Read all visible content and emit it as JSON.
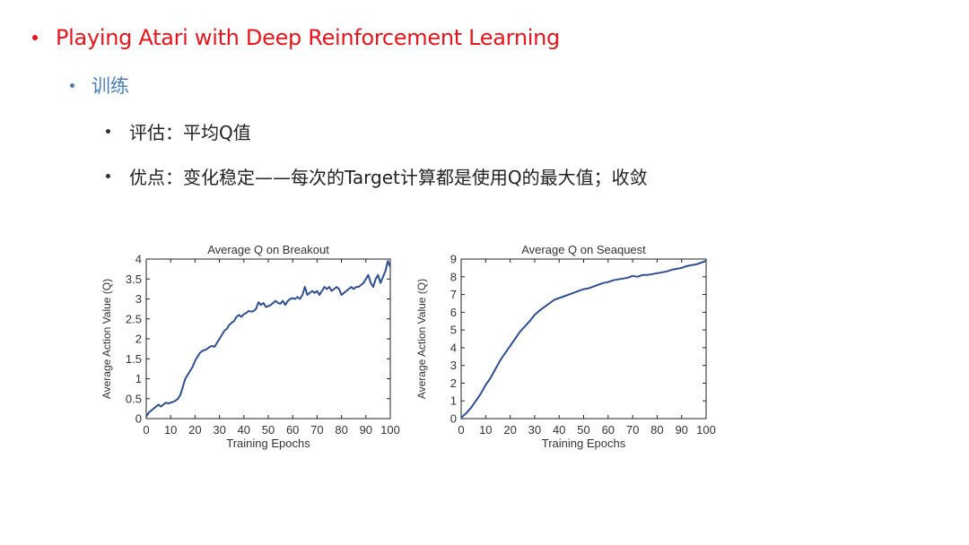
{
  "slide": {
    "title": "Playing Atari with Deep Reinforcement Learning",
    "subtopic": "训练",
    "points": [
      "评估：平均Q值",
      "优点：变化稳定——每次的Target计算都是使用Q的最大值；收敛"
    ],
    "colors": {
      "title": "#e8141b",
      "subtopic": "#4a7ebb",
      "body": "#222222",
      "series": "#2f4f93"
    }
  },
  "chart_data": [
    {
      "type": "line",
      "title": "Average Q on Breakout",
      "xlabel": "Training Epochs",
      "ylabel": "Average Action Value (Q)",
      "xlim": [
        0,
        100
      ],
      "ylim": [
        0,
        4
      ],
      "xticks": [
        0,
        10,
        20,
        30,
        40,
        50,
        60,
        70,
        80,
        90,
        100
      ],
      "yticks": [
        0,
        0.5,
        1,
        1.5,
        2,
        2.5,
        3,
        3.5,
        4
      ],
      "grid": false,
      "series": [
        {
          "x": [
            0,
            1,
            2,
            3,
            4,
            5,
            6,
            7,
            8,
            9,
            10,
            11,
            12,
            13,
            14,
            15,
            16,
            17,
            18,
            19,
            20,
            21,
            22,
            23,
            24,
            25,
            26,
            27,
            28,
            29,
            30,
            31,
            32,
            33,
            34,
            35,
            36,
            37,
            38,
            39,
            40,
            41,
            42,
            43,
            44,
            45,
            46,
            47,
            48,
            49,
            50,
            51,
            52,
            53,
            54,
            55,
            56,
            57,
            58,
            59,
            60,
            61,
            62,
            63,
            64,
            65,
            66,
            67,
            68,
            69,
            70,
            71,
            72,
            73,
            74,
            75,
            76,
            77,
            78,
            79,
            80,
            81,
            82,
            83,
            84,
            85,
            86,
            87,
            88,
            89,
            90,
            91,
            92,
            93,
            94,
            95,
            96,
            97,
            98,
            99,
            100
          ],
          "values": [
            0.05,
            0.15,
            0.2,
            0.25,
            0.3,
            0.35,
            0.3,
            0.35,
            0.4,
            0.38,
            0.4,
            0.42,
            0.45,
            0.5,
            0.6,
            0.8,
            1.0,
            1.1,
            1.2,
            1.3,
            1.45,
            1.55,
            1.65,
            1.7,
            1.72,
            1.75,
            1.8,
            1.82,
            1.8,
            1.9,
            2.0,
            2.1,
            2.2,
            2.25,
            2.35,
            2.4,
            2.45,
            2.55,
            2.6,
            2.55,
            2.62,
            2.65,
            2.7,
            2.68,
            2.7,
            2.75,
            2.92,
            2.85,
            2.9,
            2.8,
            2.82,
            2.85,
            2.9,
            2.95,
            2.9,
            2.88,
            2.95,
            2.85,
            2.95,
            3.0,
            3.02,
            3.0,
            3.05,
            3.0,
            3.1,
            3.3,
            3.1,
            3.15,
            3.2,
            3.15,
            3.2,
            3.1,
            3.2,
            3.3,
            3.25,
            3.3,
            3.2,
            3.25,
            3.3,
            3.25,
            3.1,
            3.15,
            3.2,
            3.25,
            3.3,
            3.25,
            3.3,
            3.3,
            3.35,
            3.4,
            3.5,
            3.6,
            3.4,
            3.3,
            3.5,
            3.6,
            3.4,
            3.55,
            3.7,
            3.95,
            3.8
          ]
        }
      ]
    },
    {
      "type": "line",
      "title": "Average Q on Seaquest",
      "xlabel": "Training Epochs",
      "ylabel": "Average Action Value (Q)",
      "xlim": [
        0,
        100
      ],
      "ylim": [
        0,
        9
      ],
      "xticks": [
        0,
        10,
        20,
        30,
        40,
        50,
        60,
        70,
        80,
        90,
        100
      ],
      "yticks": [
        0,
        1,
        2,
        3,
        4,
        5,
        6,
        7,
        8,
        9
      ],
      "grid": false,
      "series": [
        {
          "x": [
            0,
            2,
            4,
            6,
            8,
            10,
            12,
            14,
            16,
            18,
            20,
            22,
            24,
            26,
            28,
            30,
            32,
            34,
            36,
            38,
            40,
            42,
            44,
            46,
            48,
            50,
            52,
            54,
            56,
            58,
            60,
            62,
            64,
            66,
            68,
            70,
            72,
            74,
            76,
            78,
            80,
            82,
            84,
            86,
            88,
            90,
            92,
            94,
            96,
            98,
            100
          ],
          "values": [
            0.05,
            0.3,
            0.6,
            1.0,
            1.4,
            1.9,
            2.3,
            2.8,
            3.3,
            3.7,
            4.1,
            4.5,
            4.9,
            5.2,
            5.5,
            5.85,
            6.1,
            6.3,
            6.5,
            6.7,
            6.8,
            6.9,
            7.0,
            7.1,
            7.2,
            7.3,
            7.35,
            7.45,
            7.55,
            7.65,
            7.7,
            7.8,
            7.85,
            7.9,
            7.95,
            8.05,
            8.0,
            8.1,
            8.1,
            8.15,
            8.2,
            8.25,
            8.3,
            8.4,
            8.45,
            8.5,
            8.6,
            8.65,
            8.7,
            8.8,
            8.9
          ]
        }
      ]
    }
  ]
}
